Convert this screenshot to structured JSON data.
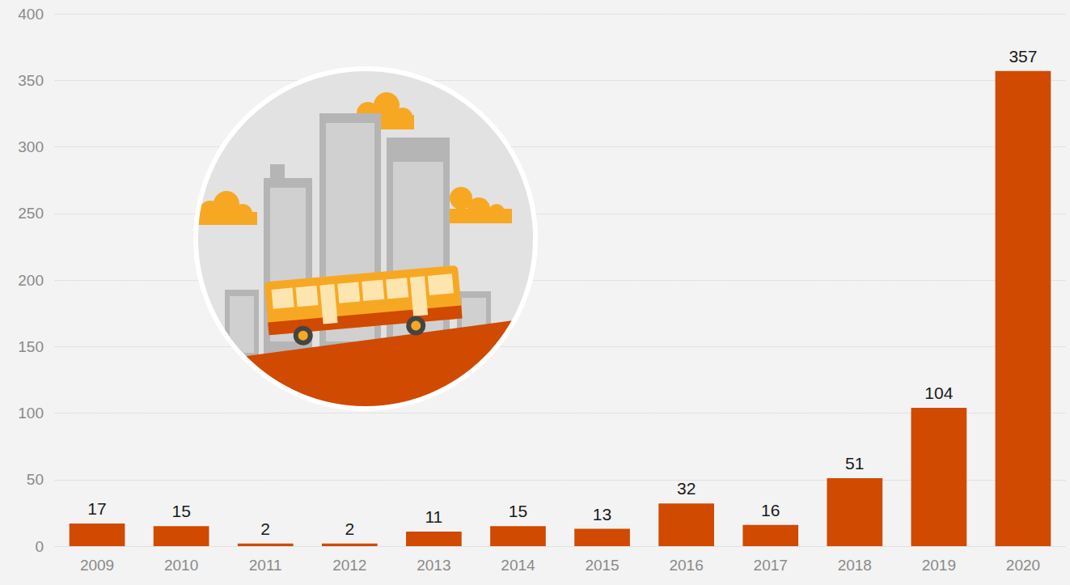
{
  "chart_data": {
    "type": "bar",
    "categories": [
      "2009",
      "2010",
      "2011",
      "2012",
      "2013",
      "2014",
      "2015",
      "2016",
      "2017",
      "2018",
      "2019",
      "2020"
    ],
    "values": [
      17,
      15,
      2,
      2,
      11,
      15,
      13,
      32,
      16,
      51,
      104,
      357
    ],
    "color": "#d04a02",
    "ylim": [
      0,
      400
    ],
    "yticks": [
      0,
      50,
      100,
      150,
      200,
      250,
      300,
      350,
      400
    ],
    "grid": true,
    "data_labels": true
  }
}
